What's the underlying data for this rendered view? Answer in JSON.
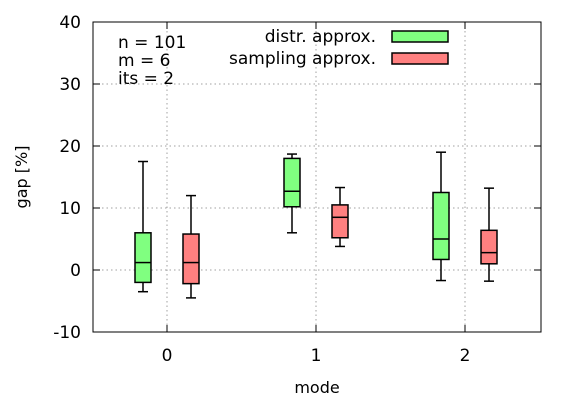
{
  "chart_data": {
    "type": "boxplot",
    "xlabel": "mode",
    "ylabel": "gap [%]",
    "categories": [
      "0",
      "1",
      "2"
    ],
    "ylim": [
      -10,
      40
    ],
    "yticks": [
      "-10",
      "0",
      "10",
      "20",
      "30",
      "40"
    ],
    "grid": true,
    "legend_placement": "top-right",
    "annotations": [
      "n = 101",
      "m = 6",
      "its = 2"
    ],
    "series": [
      {
        "name": "distr. approx.",
        "color": "#80ff80",
        "boxes": [
          {
            "min": -3.5,
            "q1": -2.0,
            "median": 1.2,
            "q3": 6.0,
            "max": 17.5
          },
          {
            "min": 6.0,
            "q1": 10.2,
            "median": 12.7,
            "q3": 18.0,
            "max": 18.7
          },
          {
            "min": -1.7,
            "q1": 1.7,
            "median": 5.0,
            "q3": 12.5,
            "max": 19.0
          }
        ]
      },
      {
        "name": "sampling approx.",
        "color": "#ff8080",
        "boxes": [
          {
            "min": -4.5,
            "q1": -2.2,
            "median": 1.2,
            "q3": 5.8,
            "max": 12.0
          },
          {
            "min": 3.8,
            "q1": 5.2,
            "median": 8.5,
            "q3": 10.5,
            "max": 13.3
          },
          {
            "min": -1.8,
            "q1": 1.0,
            "median": 2.8,
            "q3": 6.4,
            "max": 13.2
          }
        ]
      }
    ]
  }
}
